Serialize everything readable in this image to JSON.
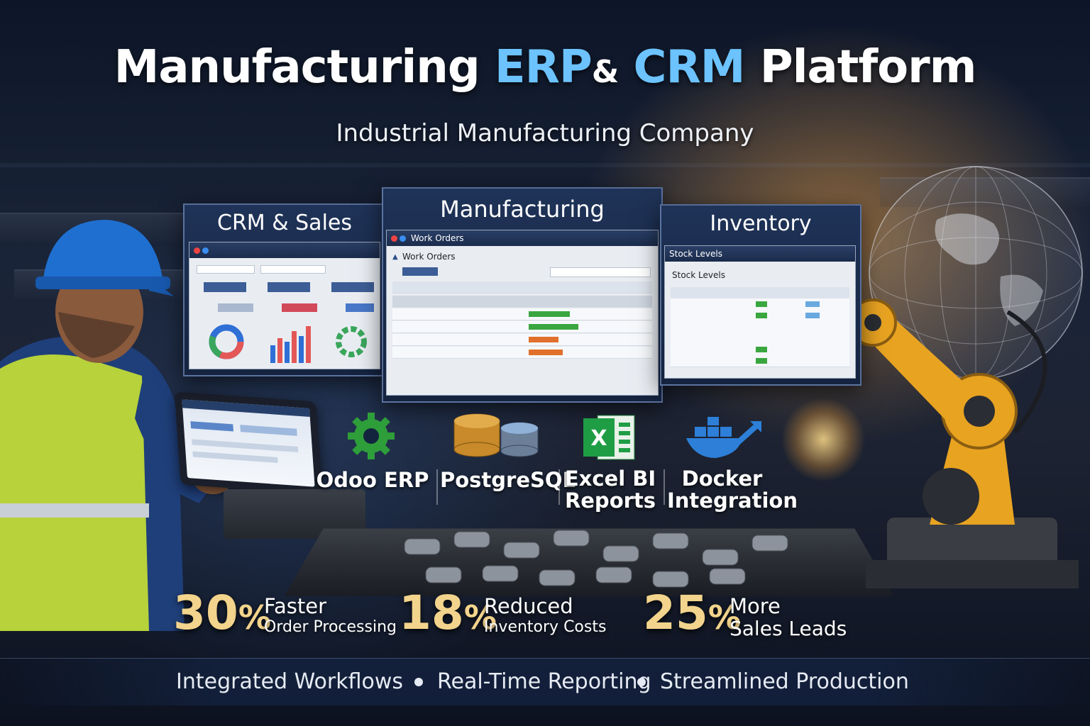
{
  "hero": {
    "title_part1": "Manufacturing",
    "title_erp": "ERP",
    "title_amp": "&",
    "title_crm": "CRM",
    "title_part2": "Platform",
    "subtitle": "Industrial Manufacturing Company"
  },
  "panels": {
    "crm": {
      "title": "CRM & Sales"
    },
    "manufacturing": {
      "title": "Manufacturing",
      "window_title": "Work Orders",
      "section_label": "Work Orders"
    },
    "inventory": {
      "title": "Inventory",
      "window_title": "Stock Levels",
      "section_label": "Stock Levels"
    }
  },
  "tech": [
    {
      "label_line1": "Odoo ERP",
      "label_line2": "",
      "icon": "gear-icon"
    },
    {
      "label_line1": "PostgreSQL",
      "label_line2": "",
      "icon": "database-icon"
    },
    {
      "label_line1": "Excel BI",
      "label_line2": "Reports",
      "icon": "spreadsheet-icon"
    },
    {
      "label_line1": "Docker",
      "label_line2": "Integration",
      "icon": "container-ship-icon"
    }
  ],
  "stats": [
    {
      "number": "30",
      "unit": "%",
      "line1": "Faster",
      "line2": "Order Processing"
    },
    {
      "number": "18",
      "unit": "%",
      "line1": "Reduced",
      "line2": "Inventory Costs"
    },
    {
      "number": "25",
      "unit": "%",
      "line1": "More",
      "line2": "Sales Leads"
    }
  ],
  "features": [
    "Integrated Workflows",
    "Real-Time Reporting",
    "Streamlined Production"
  ],
  "colors": {
    "accent_blue": "#6cc3ff",
    "stat_gold": "#f3d48c",
    "panel_navy": "#1f3358",
    "robot_orange": "#e8a321"
  }
}
